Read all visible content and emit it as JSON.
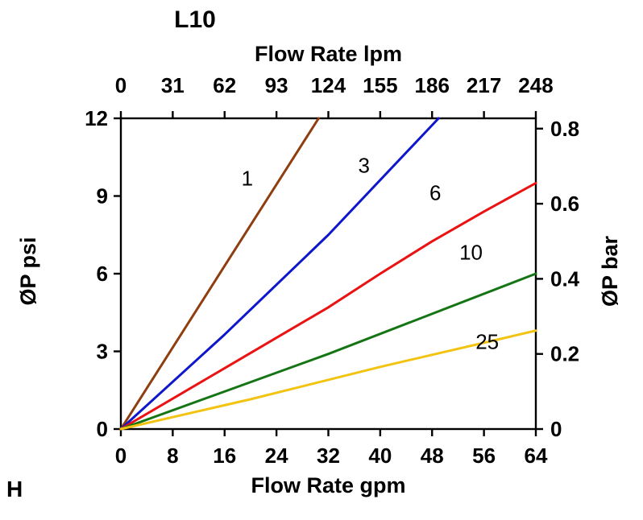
{
  "page": {
    "corner_label": "H"
  },
  "chart_data": {
    "type": "line",
    "title": "L10",
    "grid": false,
    "legend": "inline-labels",
    "top_axis": {
      "label": "Flow Rate lpm",
      "ticks": [
        0,
        31,
        62,
        93,
        124,
        155,
        186,
        217,
        248
      ]
    },
    "bottom_axis": {
      "label": "Flow Rate gpm",
      "ticks": [
        0,
        8,
        16,
        24,
        32,
        40,
        48,
        56,
        64
      ],
      "min": 0,
      "max": 64
    },
    "left_axis": {
      "label": "ØP psi",
      "ticks": [
        0,
        3,
        6,
        9,
        12
      ],
      "min": 0,
      "max": 12
    },
    "right_axis": {
      "label": "ØP bar",
      "ticks": [
        0,
        0.2,
        0.4,
        0.6,
        0.8
      ],
      "min": 0,
      "max": 0.8274
    },
    "series": [
      {
        "name": "1",
        "color": "#8f3e0f",
        "points": [
          [
            0,
            0
          ],
          [
            16,
            6.3
          ],
          [
            30.5,
            12
          ]
        ],
        "label_at": [
          19.5,
          9.4
        ]
      },
      {
        "name": "3",
        "color": "#0e17cc",
        "points": [
          [
            0,
            0
          ],
          [
            16,
            3.65
          ],
          [
            32,
            7.5
          ],
          [
            49,
            12
          ]
        ],
        "label_at": [
          37.5,
          9.9
        ]
      },
      {
        "name": "6",
        "color": "#ea1212",
        "points": [
          [
            0,
            0
          ],
          [
            16,
            2.35
          ],
          [
            32,
            4.7
          ],
          [
            40,
            6.0
          ],
          [
            48,
            7.25
          ],
          [
            56,
            8.4
          ],
          [
            64,
            9.5
          ]
        ],
        "label_at": [
          48.5,
          8.85
        ]
      },
      {
        "name": "10",
        "color": "#157515",
        "points": [
          [
            0,
            0
          ],
          [
            16,
            1.45
          ],
          [
            32,
            2.9
          ],
          [
            48,
            4.45
          ],
          [
            64,
            6.0
          ]
        ],
        "label_at": [
          54,
          6.55
        ]
      },
      {
        "name": "25",
        "color": "#f2c411",
        "points": [
          [
            0,
            0
          ],
          [
            20,
            1.15
          ],
          [
            40,
            2.4
          ],
          [
            64,
            3.8
          ]
        ],
        "label_at": [
          56.5,
          3.1
        ]
      }
    ]
  }
}
